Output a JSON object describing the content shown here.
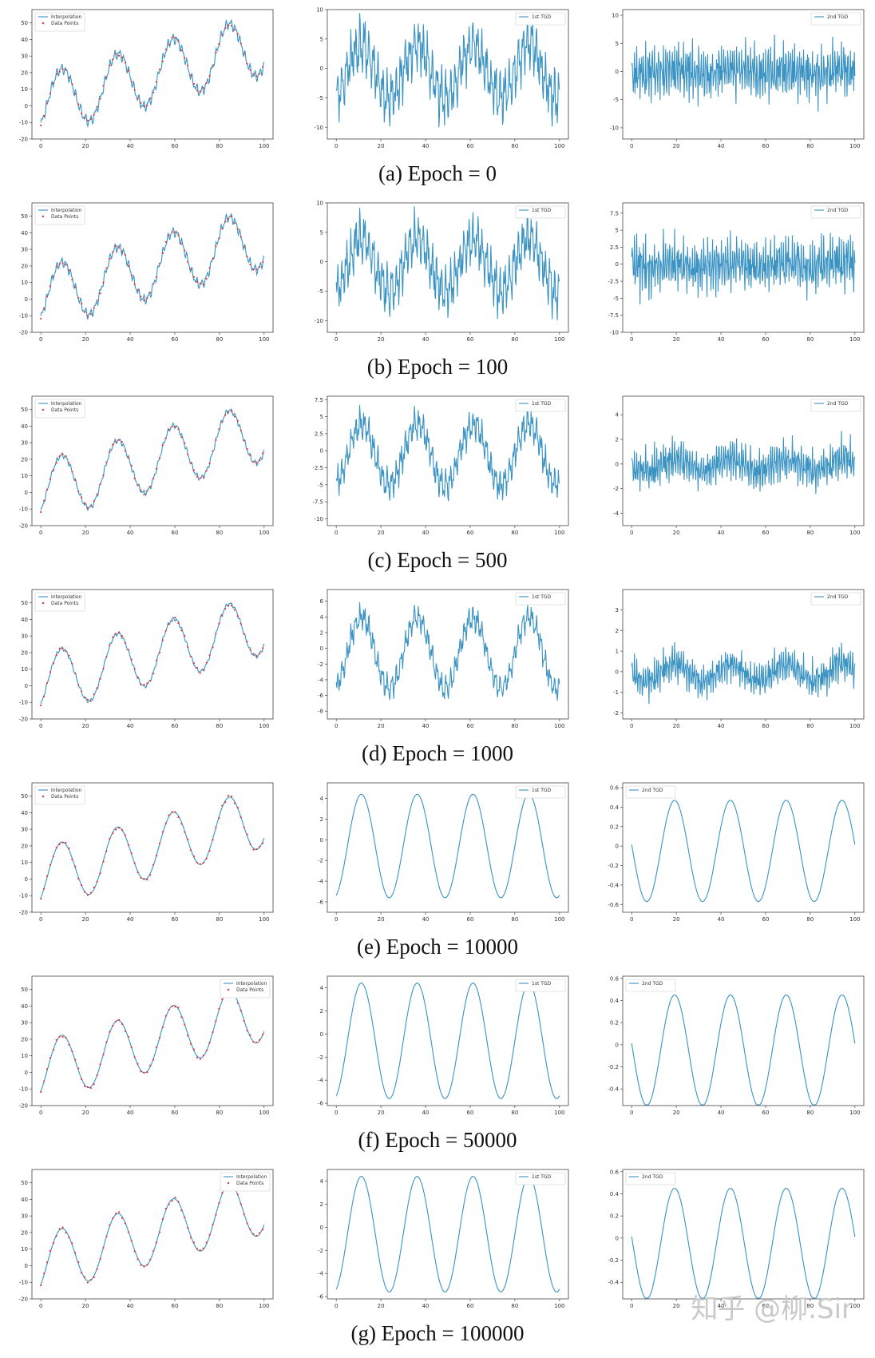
{
  "colors": {
    "line": "#3a93c3",
    "points": "#e5383b",
    "axis": "#444444"
  },
  "watermark": "知乎 @柳.Sir",
  "rows": [
    {
      "caption": "(a) Epoch = 0",
      "epoch": 0
    },
    {
      "caption": "(b) Epoch = 100",
      "epoch": 100
    },
    {
      "caption": "(c) Epoch = 500",
      "epoch": 500
    },
    {
      "caption": "(d) Epoch = 1000",
      "epoch": 1000
    },
    {
      "caption": "(e) Epoch = 10000",
      "epoch": 10000
    },
    {
      "caption": "(f) Epoch = 50000",
      "epoch": 50000
    },
    {
      "caption": "(g) Epoch = 100000",
      "epoch": 100000
    }
  ],
  "chart_data": [
    {
      "row": 0,
      "col": 0,
      "type": "line",
      "legend": [
        "Interpolation",
        "Data Points"
      ],
      "legend_loc": "upper-left",
      "xlim": [
        0,
        100
      ],
      "ylim": [
        -20,
        58
      ],
      "xticks": [
        0,
        20,
        40,
        60,
        80,
        100
      ],
      "yticks": [
        -20,
        -10,
        0,
        10,
        20,
        30,
        40,
        50
      ],
      "series_kind": "interp",
      "noise": 1.0
    },
    {
      "row": 0,
      "col": 1,
      "type": "line",
      "legend": [
        "1st TGD"
      ],
      "legend_loc": "upper-right",
      "xlim": [
        0,
        100
      ],
      "ylim": [
        -12,
        10
      ],
      "xticks": [
        0,
        20,
        40,
        60,
        80,
        100
      ],
      "yticks": [
        -10,
        -5,
        0,
        5,
        10
      ],
      "series_kind": "d1",
      "amp": 4.5,
      "noise": 3.2
    },
    {
      "row": 0,
      "col": 2,
      "type": "line",
      "legend": [
        "2nd TGD"
      ],
      "legend_loc": "upper-right",
      "xlim": [
        0,
        100
      ],
      "ylim": [
        -12,
        11
      ],
      "xticks": [
        0,
        20,
        40,
        60,
        80,
        100
      ],
      "yticks": [
        -10,
        -5,
        0,
        5,
        10
      ],
      "series_kind": "d2",
      "amp": 0.5,
      "noise": 4.0
    },
    {
      "row": 1,
      "col": 0,
      "type": "line",
      "legend": [
        "Interpolation",
        "Data Points"
      ],
      "legend_loc": "upper-left",
      "xlim": [
        0,
        100
      ],
      "ylim": [
        -20,
        58
      ],
      "xticks": [
        0,
        20,
        40,
        60,
        80,
        100
      ],
      "yticks": [
        -20,
        -10,
        0,
        10,
        20,
        30,
        40,
        50
      ],
      "series_kind": "interp",
      "noise": 0.9
    },
    {
      "row": 1,
      "col": 1,
      "type": "line",
      "legend": [
        "1st TGD"
      ],
      "legend_loc": "upper-right",
      "xlim": [
        0,
        100
      ],
      "ylim": [
        -12,
        10
      ],
      "xticks": [
        0,
        20,
        40,
        60,
        80,
        100
      ],
      "yticks": [
        -10,
        -5,
        0,
        5,
        10
      ],
      "series_kind": "d1",
      "amp": 4.5,
      "noise": 3.0
    },
    {
      "row": 1,
      "col": 2,
      "type": "line",
      "legend": [
        "2nd TGD"
      ],
      "legend_loc": "upper-right",
      "xlim": [
        0,
        100
      ],
      "ylim": [
        -10,
        9
      ],
      "xticks": [
        0,
        20,
        40,
        60,
        80,
        100
      ],
      "yticks": [
        -10.0,
        -7.5,
        -5.0,
        -2.5,
        0.0,
        2.5,
        5.0,
        7.5
      ],
      "series_kind": "d2",
      "amp": 0.5,
      "noise": 3.2
    },
    {
      "row": 2,
      "col": 0,
      "type": "line",
      "legend": [
        "Interpolation",
        "Data Points"
      ],
      "legend_loc": "upper-left",
      "xlim": [
        0,
        100
      ],
      "ylim": [
        -20,
        58
      ],
      "xticks": [
        0,
        20,
        40,
        60,
        80,
        100
      ],
      "yticks": [
        -20,
        -10,
        0,
        10,
        20,
        30,
        40,
        50
      ],
      "series_kind": "interp",
      "noise": 0.5
    },
    {
      "row": 2,
      "col": 1,
      "type": "line",
      "legend": [
        "1st TGD"
      ],
      "legend_loc": "upper-right",
      "xlim": [
        0,
        100
      ],
      "ylim": [
        -11,
        8
      ],
      "xticks": [
        0,
        20,
        40,
        60,
        80,
        100
      ],
      "yticks": [
        -10.0,
        -7.5,
        -5.0,
        -2.5,
        0.0,
        2.5,
        5.0,
        7.5
      ],
      "series_kind": "d1",
      "amp": 4.5,
      "noise": 1.6
    },
    {
      "row": 2,
      "col": 2,
      "type": "line",
      "legend": [
        "2nd TGD"
      ],
      "legend_loc": "upper-right",
      "xlim": [
        0,
        100
      ],
      "ylim": [
        -5,
        5.5
      ],
      "xticks": [
        0,
        20,
        40,
        60,
        80,
        100
      ],
      "yticks": [
        -4,
        -2,
        0,
        2,
        4
      ],
      "series_kind": "d2",
      "amp": 0.5,
      "noise": 1.3
    },
    {
      "row": 3,
      "col": 0,
      "type": "line",
      "legend": [
        "Interpolation",
        "Data Points"
      ],
      "legend_loc": "upper-left",
      "xlim": [
        0,
        100
      ],
      "ylim": [
        -20,
        58
      ],
      "xticks": [
        0,
        20,
        40,
        60,
        80,
        100
      ],
      "yticks": [
        -20,
        -10,
        0,
        10,
        20,
        30,
        40,
        50
      ],
      "series_kind": "interp",
      "noise": 0.35
    },
    {
      "row": 3,
      "col": 1,
      "type": "line",
      "legend": [
        "1st TGD"
      ],
      "legend_loc": "upper-right",
      "xlim": [
        0,
        100
      ],
      "ylim": [
        -9,
        7.5
      ],
      "xticks": [
        0,
        20,
        40,
        60,
        80,
        100
      ],
      "yticks": [
        -8,
        -6,
        -4,
        -2,
        0,
        2,
        4,
        6
      ],
      "series_kind": "d1",
      "amp": 4.5,
      "noise": 1.1
    },
    {
      "row": 3,
      "col": 2,
      "type": "line",
      "legend": [
        "2nd TGD"
      ],
      "legend_loc": "upper-right",
      "xlim": [
        0,
        100
      ],
      "ylim": [
        -2.3,
        4
      ],
      "xticks": [
        0,
        20,
        40,
        60,
        80,
        100
      ],
      "yticks": [
        -2,
        -1,
        0,
        1,
        2,
        3
      ],
      "series_kind": "d2",
      "amp": 0.4,
      "noise": 0.7
    },
    {
      "row": 4,
      "col": 0,
      "type": "line",
      "legend": [
        "Interpolation",
        "Data Points"
      ],
      "legend_loc": "upper-left",
      "xlim": [
        0,
        100
      ],
      "ylim": [
        -20,
        58
      ],
      "xticks": [
        0,
        20,
        40,
        60,
        80,
        100
      ],
      "yticks": [
        -20,
        -10,
        0,
        10,
        20,
        30,
        40,
        50
      ],
      "series_kind": "interp",
      "noise": 0.0
    },
    {
      "row": 4,
      "col": 1,
      "type": "line",
      "legend": [
        "1st TGD"
      ],
      "legend_loc": "upper-right",
      "xlim": [
        0,
        100
      ],
      "ylim": [
        -7,
        5.5
      ],
      "xticks": [
        0,
        20,
        40,
        60,
        80,
        100
      ],
      "yticks": [
        -6,
        -4,
        -2,
        0,
        2,
        4
      ],
      "series_kind": "d1",
      "amp": 5.0,
      "noise": 0.0
    },
    {
      "row": 4,
      "col": 2,
      "type": "line",
      "legend": [
        "2nd TGD"
      ],
      "legend_loc": "upper-left",
      "xlim": [
        0,
        100
      ],
      "ylim": [
        -0.68,
        0.65
      ],
      "xticks": [
        0,
        20,
        40,
        60,
        80,
        100
      ],
      "yticks": [
        -0.6,
        -0.4,
        -0.2,
        0.0,
        0.2,
        0.4,
        0.6
      ],
      "series_kind": "d2",
      "amp": 0.52,
      "noise": 0.0
    },
    {
      "row": 5,
      "col": 0,
      "type": "line",
      "legend": [
        "Interpolation",
        "Data Points"
      ],
      "legend_loc": "upper-right",
      "xlim": [
        0,
        100
      ],
      "ylim": [
        -20,
        58
      ],
      "xticks": [
        0,
        20,
        40,
        60,
        80,
        100
      ],
      "yticks": [
        -20,
        -10,
        0,
        10,
        20,
        30,
        40,
        50
      ],
      "series_kind": "interp",
      "noise": 0.0
    },
    {
      "row": 5,
      "col": 1,
      "type": "line",
      "legend": [
        "1st TGD"
      ],
      "legend_loc": "upper-right",
      "xlim": [
        0,
        100
      ],
      "ylim": [
        -6.2,
        5
      ],
      "xticks": [
        0,
        20,
        40,
        60,
        80,
        100
      ],
      "yticks": [
        -6,
        -4,
        -2,
        0,
        2,
        4
      ],
      "series_kind": "d1",
      "amp": 5.0,
      "noise": 0.0
    },
    {
      "row": 5,
      "col": 2,
      "type": "line",
      "legend": [
        "2nd TGD"
      ],
      "legend_loc": "upper-left",
      "xlim": [
        0,
        100
      ],
      "ylim": [
        -0.55,
        0.62
      ],
      "xticks": [
        0,
        20,
        40,
        60,
        80,
        100
      ],
      "yticks": [
        -0.4,
        -0.2,
        0.0,
        0.2,
        0.4,
        0.6
      ],
      "series_kind": "d2",
      "amp": 0.5,
      "noise": 0.0
    },
    {
      "row": 6,
      "col": 0,
      "type": "line",
      "legend": [
        "Interpolation",
        "Data Points"
      ],
      "legend_loc": "upper-right",
      "xlim": [
        0,
        100
      ],
      "ylim": [
        -20,
        58
      ],
      "xticks": [
        0,
        20,
        40,
        60,
        80,
        100
      ],
      "yticks": [
        -20,
        -10,
        0,
        10,
        20,
        30,
        40,
        50
      ],
      "series_kind": "interp",
      "noise": 0.0
    },
    {
      "row": 6,
      "col": 1,
      "type": "line",
      "legend": [
        "1st TGD"
      ],
      "legend_loc": "upper-right",
      "xlim": [
        0,
        100
      ],
      "ylim": [
        -6.2,
        5
      ],
      "xticks": [
        0,
        20,
        40,
        60,
        80,
        100
      ],
      "yticks": [
        -6,
        -4,
        -2,
        0,
        2,
        4
      ],
      "series_kind": "d1",
      "amp": 5.0,
      "noise": 0.0
    },
    {
      "row": 6,
      "col": 2,
      "type": "line",
      "legend": [
        "2nd TGD"
      ],
      "legend_loc": "upper-left",
      "xlim": [
        0,
        100
      ],
      "ylim": [
        -0.55,
        0.62
      ],
      "xticks": [
        0,
        20,
        40,
        60,
        80,
        100
      ],
      "yticks": [
        -0.4,
        -0.2,
        0.0,
        0.2,
        0.4,
        0.6
      ],
      "series_kind": "d2",
      "amp": 0.5,
      "noise": 0.0
    }
  ]
}
